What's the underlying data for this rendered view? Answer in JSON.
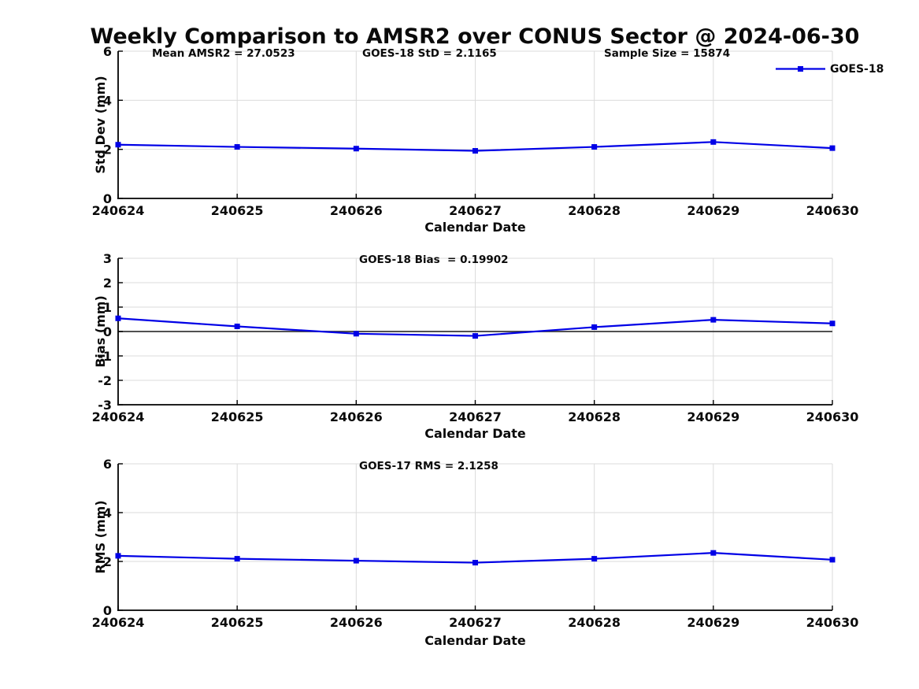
{
  "title": "Weekly Comparison to AMSR2 over CONUS Sector @ 2024-06-30",
  "legend": {
    "series_label": "GOES-18"
  },
  "colors": {
    "series_line": "#0000E6",
    "grid": "#DBDBDB",
    "axis": "#000000",
    "zero_line": "#383838",
    "text": "#0a0a0a",
    "background": "#ffffff"
  },
  "chart_data": [
    {
      "type": "line",
      "name": "std-dev",
      "title": "",
      "annotations": [
        {
          "text": "Mean AMSR2 = 27.0523"
        },
        {
          "text": "GOES-18 StD = 2.1165"
        },
        {
          "text": "Sample Size = 15874"
        }
      ],
      "ylabel": "Std Dev (mm)",
      "xlabel": "Calendar Date",
      "categories": [
        "240624",
        "240625",
        "240626",
        "240627",
        "240628",
        "240629",
        "240630"
      ],
      "series": [
        {
          "name": "GOES-18",
          "values": [
            2.19,
            2.1,
            2.03,
            1.94,
            2.1,
            2.3,
            2.05
          ]
        }
      ],
      "ylim": [
        0,
        6
      ],
      "yticks": [
        0,
        2,
        4,
        6
      ],
      "grid": true,
      "zero_line": false,
      "legend_position": "top-right",
      "marker": "square"
    },
    {
      "type": "line",
      "name": "bias",
      "title": "",
      "annotations": [
        {
          "text": "GOES-18 Bias  = 0.19902"
        }
      ],
      "ylabel": "Bias (mm)",
      "xlabel": "Calendar Date",
      "categories": [
        "240624",
        "240625",
        "240626",
        "240627",
        "240628",
        "240629",
        "240630"
      ],
      "series": [
        {
          "name": "GOES-18",
          "values": [
            0.54,
            0.21,
            -0.09,
            -0.18,
            0.18,
            0.48,
            0.33
          ]
        }
      ],
      "ylim": [
        -3,
        3
      ],
      "yticks": [
        -3,
        -2,
        -1,
        0,
        1,
        2,
        3
      ],
      "grid": true,
      "zero_line": true,
      "legend_position": "none",
      "marker": "square"
    },
    {
      "type": "line",
      "name": "rms",
      "title": "",
      "annotations": [
        {
          "text": "GOES-17 RMS = 2.1258"
        }
      ],
      "ylabel": "RMS (mm)",
      "xlabel": "Calendar Date",
      "categories": [
        "240624",
        "240625",
        "240626",
        "240627",
        "240628",
        "240629",
        "240630"
      ],
      "series": [
        {
          "name": "GOES-18",
          "values": [
            2.23,
            2.11,
            2.03,
            1.95,
            2.11,
            2.35,
            2.07
          ]
        }
      ],
      "ylim": [
        0,
        6
      ],
      "yticks": [
        0,
        2,
        4,
        6
      ],
      "grid": true,
      "zero_line": false,
      "legend_position": "none",
      "marker": "square"
    }
  ]
}
